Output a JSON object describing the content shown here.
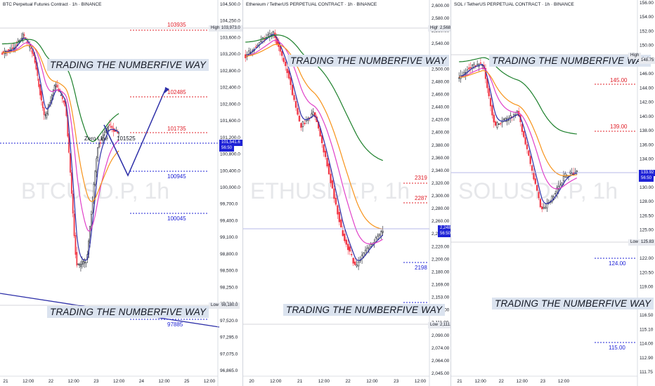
{
  "colors": {
    "bull": "#ffffff",
    "bear": "#f23645",
    "blue_line": "#2d2fa8",
    "ema_orange": "#f7931a",
    "ema_pink": "#e040c8",
    "ema_green": "#1b7f2a",
    "resist": "#e0202a",
    "support": "#1e22d6",
    "banner_bg": "#dbe3ef",
    "price_tag": "#1e22d6"
  },
  "panels": [
    {
      "title": "BTC Perpetual Futures Contract · 1h · BINANCE",
      "watermark": "BTCUSD.P, 1h",
      "banner_top": "TRADING THE NUMBERFIVE WAY",
      "banner_bottom": "TRADING THE NUMBERFIVE WAY",
      "zero_line_label": "Zero  Line",
      "high_tag": "High",
      "high_value": "103,973.0",
      "low_tag": "Low",
      "low_value": "98,180.0",
      "price_tag": "101,541.6",
      "countdown": "56:50",
      "x_labels": [
        "21",
        "12:00",
        "22",
        "12:00",
        "23",
        "12:00",
        "24",
        "12:00",
        "25",
        "12:00"
      ],
      "y_labels": [
        "104,500.0",
        "104,250.0",
        "103,600.0",
        "103,200.0",
        "102,800.0",
        "102,400.0",
        "102,000.0",
        "101,600.0",
        "101,200.0",
        "100,800.0",
        "100,400.0",
        "100,000.0",
        "99,700.0",
        "99,400.0",
        "99,100.0",
        "98,800.0",
        "98,500.0",
        "98,250.0",
        "97,760.0",
        "97,520.0",
        "97,295.0",
        "97,075.0",
        "96,865.0"
      ],
      "levels": [
        {
          "label": "103935",
          "kind": "resist"
        },
        {
          "label": "102485",
          "kind": "resist"
        },
        {
          "label": "101735",
          "kind": "resist"
        },
        {
          "label": "101525",
          "kind": "zero"
        },
        {
          "label": "100945",
          "kind": "support"
        },
        {
          "label": "100045",
          "kind": "support"
        },
        {
          "label": "97885",
          "kind": "support"
        }
      ]
    },
    {
      "title": "Ethereum / TetherUS PERPETUAL CONTRACT · 1h · BINANCE",
      "watermark": "ETHUSDT.P, 1h",
      "banner_top": "TRADING THE NUMBERFIVE WAY",
      "banner_bottom": "TRADING THE NUMBERFIVE WAY",
      "high_tag": "High",
      "high_value": "2,568.56",
      "low_tag": "Low",
      "low_value": "2,111.00",
      "price_tag": "2,248.51",
      "countdown": "56:50",
      "x_labels": [
        "20",
        "12:00",
        "21",
        "12:00",
        "22",
        "12:00",
        "23",
        "12:00"
      ],
      "y_labels": [
        "2,600.00",
        "2,580.00",
        "2,560.00",
        "2,540.00",
        "2,520.00",
        "2,500.00",
        "2,480.00",
        "2,460.00",
        "2,440.00",
        "2,420.00",
        "2,400.00",
        "2,380.00",
        "2,360.00",
        "2,340.00",
        "2,320.00",
        "2,300.00",
        "2,280.00",
        "2,260.00",
        "2,240.00",
        "2,220.00",
        "2,200.00",
        "2,180.00",
        "2,169.00",
        "2,153.00",
        "2,137.00",
        "2,111.00",
        "2,090.00",
        "2,074.00",
        "2,064.00",
        "2,045.00"
      ],
      "levels": [
        {
          "label": "2319",
          "kind": "resist"
        },
        {
          "label": "2287",
          "kind": "resist"
        },
        {
          "label": "2198",
          "kind": "support"
        },
        {
          "label": "2141",
          "kind": "support"
        }
      ]
    },
    {
      "title": "SOL / TetherUS PERPETUAL CONTRACT · 1h · BINANCE",
      "watermark": "SOLUSDT.P, 1h",
      "banner_top": "TRADING THE NUMBERFIVE WAY",
      "banner_bottom": "TRADING THE NUMBERFIVE WAY",
      "high_tag": "High",
      "high_value": "148.75",
      "low_tag": "Low",
      "low_value": "125.83",
      "price_tag": "133.92",
      "countdown": "56:50",
      "x_labels": [
        "21",
        "12:00",
        "22",
        "12:00",
        "23",
        "12:00"
      ],
      "y_labels": [
        "156.00",
        "154.00",
        "152.00",
        "150.00",
        "148.00",
        "146.00",
        "144.00",
        "142.00",
        "140.00",
        "138.00",
        "136.00",
        "134.00",
        "132.00",
        "130.00",
        "128.00",
        "126.50",
        "125.00",
        "123.50",
        "122.00",
        "120.50",
        "119.00",
        "117.50",
        "116.50",
        "115.10",
        "114.00",
        "112.90",
        "111.75"
      ],
      "levels": [
        {
          "label": "145.00",
          "kind": "resist"
        },
        {
          "label": "139.00",
          "kind": "resist"
        },
        {
          "label": "124.00",
          "kind": "support"
        },
        {
          "label": "115.00",
          "kind": "support"
        }
      ]
    }
  ]
}
